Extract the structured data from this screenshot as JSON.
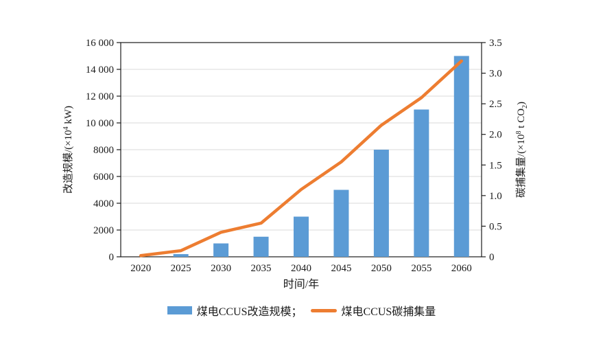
{
  "colors": {
    "bar": "#5b9bd5",
    "line": "#ed7d31",
    "grid": "#d9d9d9",
    "axis": "#1a1a1a",
    "text": "#1a1a1a",
    "background": "#ffffff"
  },
  "chart_data": {
    "type": "combo: bar + line, dual y-axes",
    "categories": [
      "2020",
      "2025",
      "2030",
      "2035",
      "2040",
      "2045",
      "2050",
      "2055",
      "2060"
    ],
    "series": [
      {
        "name": "煤电CCUS改造规模",
        "type": "bar",
        "y_axis": "left",
        "color": "#5b9bd5",
        "values": [
          0,
          200,
          1000,
          1500,
          3000,
          5000,
          8000,
          11000,
          15000
        ]
      },
      {
        "name": "煤电CCUS碳捕集量",
        "type": "line",
        "y_axis": "right",
        "color": "#ed7d31",
        "values": [
          0.02,
          0.1,
          0.4,
          0.55,
          1.1,
          1.55,
          2.15,
          2.6,
          3.2
        ]
      }
    ],
    "xlabel": "时间/年",
    "axes": {
      "left": {
        "label": "改造规模/(×10⁴ kW)",
        "label_parts": {
          "prefix": "改造规模/(×10",
          "sup": "4",
          "suffix": " kW)"
        },
        "range": [
          0,
          16000
        ],
        "step": 2000,
        "tick_labels": [
          "0",
          "2000",
          "4000",
          "6000",
          "8000",
          "10 000",
          "12 000",
          "14 000",
          "16 000"
        ]
      },
      "right": {
        "label": "碳捕集量/(×10⁸ t CO₂)",
        "label_parts": {
          "prefix": "碳捕集量/(×10",
          "sup": "8",
          "mid": " t CO",
          "sub": "2",
          "suffix": ")"
        },
        "range": [
          0,
          3.5
        ],
        "step": 0.5,
        "tick_labels": [
          "0",
          "0.5",
          "1.0",
          "1.5",
          "2.0",
          "2.5",
          "3.0",
          "3.5"
        ]
      }
    },
    "grid": true,
    "legend_position": "bottom",
    "legend_items": [
      {
        "label": "煤电CCUS改造规模；",
        "swatch": "bar",
        "color": "#5b9bd5"
      },
      {
        "label": "煤电CCUS碳捕集量",
        "swatch": "line",
        "color": "#ed7d31"
      }
    ]
  }
}
